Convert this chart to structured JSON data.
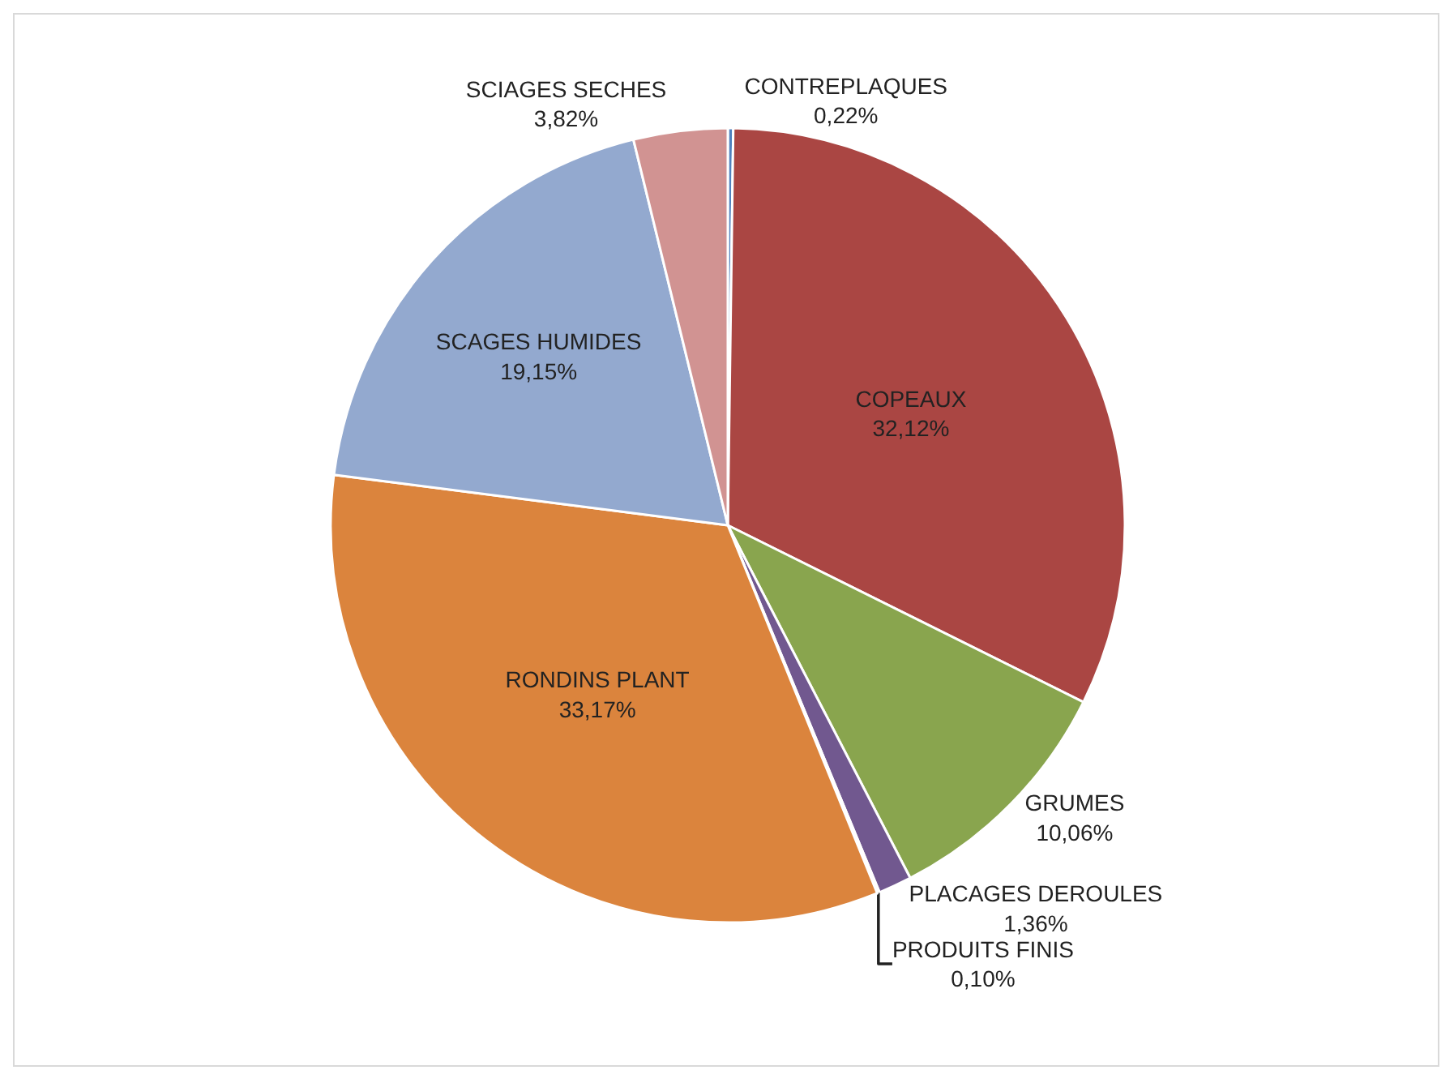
{
  "chart_data": {
    "type": "pie",
    "categories": [
      "CONTREPLAQUES",
      "COPEAUX",
      "GRUMES",
      "PLACAGES DEROULES",
      "PRODUITS FINIS",
      "RONDINS PLANT",
      "SCAGES HUMIDES",
      "SCIAGES SECHES"
    ],
    "values": [
      0.22,
      32.12,
      10.06,
      1.36,
      0.1,
      33.17,
      19.15,
      3.82
    ],
    "value_labels": [
      "0,22%",
      "32,12%",
      "10,06%",
      "1,36%",
      "0,10%",
      "33,17%",
      "19,15%",
      "3,82%"
    ],
    "colors": [
      "#4f81bd",
      "#aa4643",
      "#89a54e",
      "#71588f",
      "#4198af",
      "#db843d",
      "#93a9cf",
      "#d19392"
    ],
    "legend": false
  }
}
